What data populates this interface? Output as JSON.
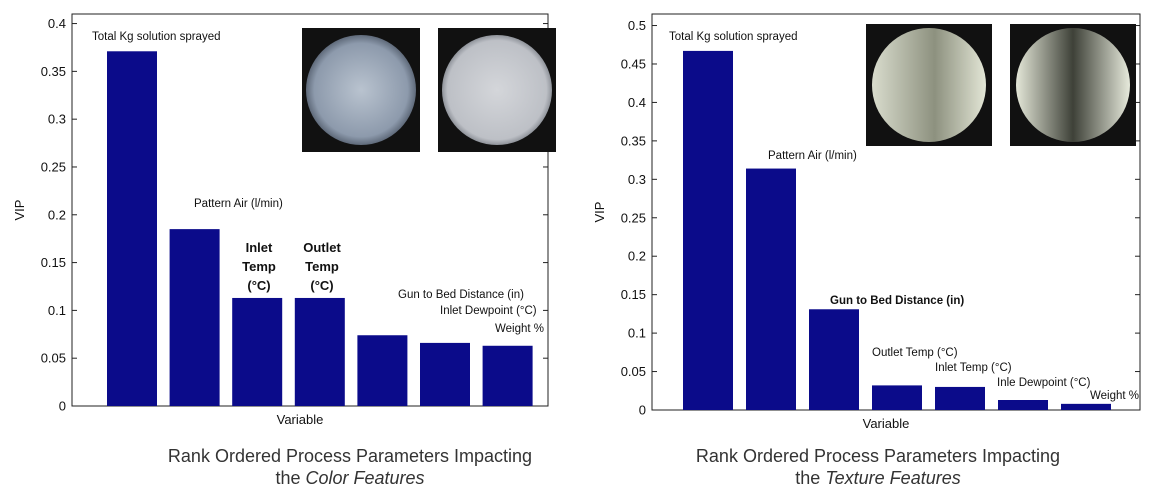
{
  "chart_data": [
    {
      "type": "bar",
      "ylabel": "VIP",
      "xlabel": "Variable",
      "color": "#0b0b8a",
      "categories": [
        "Total Kg solution sprayed",
        "Pattern Air (l/min)",
        "Inlet Temp (°C)",
        "Outlet Temp (°C)",
        "Gun to Bed Distance (in)",
        "Inlet Dewpoint (°C)",
        "Weight %"
      ],
      "values": [
        0.371,
        0.185,
        0.113,
        0.113,
        0.074,
        0.066,
        0.063
      ],
      "ylim": [
        0,
        0.41
      ],
      "yticks": [
        0,
        0.05,
        0.1,
        0.15,
        0.2,
        0.25,
        0.3,
        0.35,
        0.4
      ],
      "caption": "Rank Ordered Process Parameters Impacting",
      "caption_line2": "the",
      "caption_emphasis": "Color Features"
    },
    {
      "type": "bar",
      "ylabel": "VIP",
      "xlabel": "Variable",
      "color": "#0b0b8a",
      "categories": [
        "Total Kg solution sprayed",
        "Pattern Air (l/min)",
        "Gun to Bed Distance (in)",
        "Outlet Temp (°C)",
        "Inlet Temp (°C)",
        "Inle Dewpoint (°C)",
        "Weight %"
      ],
      "values": [
        0.467,
        0.314,
        0.131,
        0.032,
        0.03,
        0.013,
        0.008
      ],
      "ylim": [
        0,
        0.515
      ],
      "yticks": [
        0,
        0.05,
        0.1,
        0.15,
        0.2,
        0.25,
        0.3,
        0.35,
        0.4,
        0.45,
        0.5
      ],
      "caption": "Rank Ordered Process Parameters Impacting",
      "caption_line2": "the",
      "caption_emphasis": "Texture Features"
    }
  ]
}
